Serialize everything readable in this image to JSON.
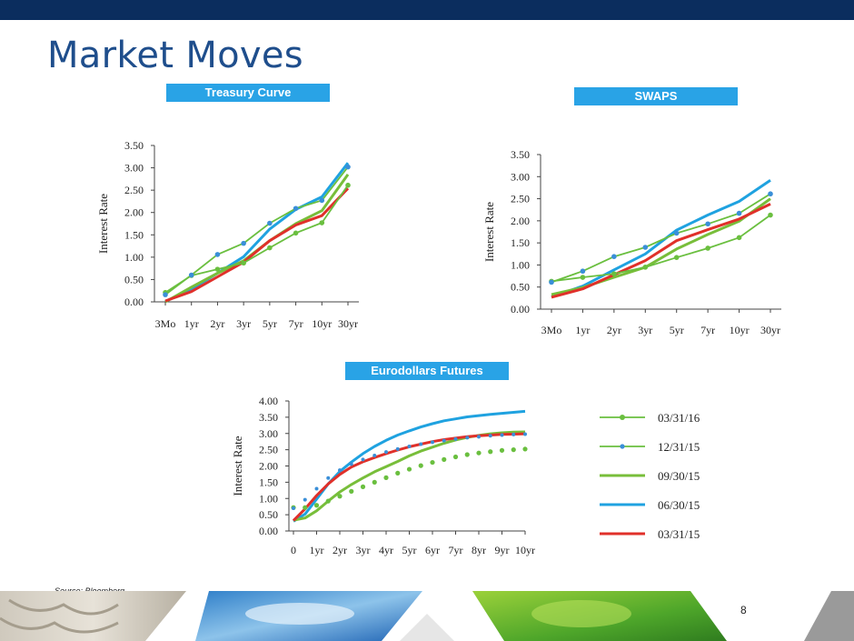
{
  "header": {
    "title": "Market Moves"
  },
  "labels": {
    "treasury": "Treasury Curve",
    "swaps": "SWAPS",
    "eurodollar": "Eurodollars Futures"
  },
  "footer": {
    "source": "Source: Bloomberg",
    "page": "8"
  },
  "legend": [
    {
      "name": "03/31/16",
      "color": "#6abf3f",
      "marker": "circle"
    },
    {
      "name": "12/31/15",
      "color": "#6abf3f",
      "marker": "blue-dot"
    },
    {
      "name": "09/30/15",
      "color": "#78be3a",
      "marker": "none"
    },
    {
      "name": "06/30/15",
      "color": "#1fa2e0",
      "marker": "none"
    },
    {
      "name": "03/31/15",
      "color": "#e0302a",
      "marker": "none"
    }
  ],
  "chart_data": [
    {
      "id": "treasury",
      "type": "line",
      "ylabel": "Interest Rate",
      "categories": [
        "3Mo",
        "1yr",
        "2yr",
        "3yr",
        "5yr",
        "7yr",
        "10yr",
        "30yr"
      ],
      "yticks": [
        "0.00",
        "0.50",
        "1.00",
        "1.50",
        "2.00",
        "2.50",
        "3.00",
        "3.50"
      ],
      "ylim": [
        0,
        3.5
      ],
      "series": [
        {
          "name": "03/31/16",
          "color": "#6abf3f",
          "marker": "green",
          "values": [
            0.21,
            0.59,
            0.73,
            0.87,
            1.21,
            1.54,
            1.77,
            2.61
          ]
        },
        {
          "name": "12/31/15",
          "color": "#6abf3f",
          "marker": "blue",
          "values": [
            0.16,
            0.6,
            1.06,
            1.31,
            1.76,
            2.09,
            2.27,
            3.02
          ]
        },
        {
          "name": "09/30/15",
          "color": "#78be3a",
          "marker": "none",
          "values": [
            0.0,
            0.33,
            0.64,
            0.92,
            1.37,
            1.75,
            2.04,
            2.85
          ]
        },
        {
          "name": "06/30/15",
          "color": "#1fa2e0",
          "marker": "none",
          "values": [
            0.01,
            0.28,
            0.64,
            1.01,
            1.63,
            2.07,
            2.35,
            3.11
          ]
        },
        {
          "name": "03/31/15",
          "color": "#e0302a",
          "marker": "none",
          "values": [
            0.02,
            0.23,
            0.56,
            0.89,
            1.37,
            1.72,
            1.93,
            2.54
          ]
        }
      ]
    },
    {
      "id": "swaps",
      "type": "line",
      "ylabel": "Interest Rate",
      "categories": [
        "3Mo",
        "1yr",
        "2yr",
        "3yr",
        "5yr",
        "7yr",
        "10yr",
        "30yr"
      ],
      "yticks": [
        "0.00",
        "0.50",
        "1.00",
        "1.50",
        "2.00",
        "2.50",
        "3.00",
        "3.50"
      ],
      "ylim": [
        0,
        3.5
      ],
      "series": [
        {
          "name": "03/31/16",
          "color": "#6abf3f",
          "marker": "green",
          "values": [
            0.63,
            0.72,
            0.8,
            0.95,
            1.17,
            1.38,
            1.62,
            2.13
          ]
        },
        {
          "name": "12/31/15",
          "color": "#6abf3f",
          "marker": "blue",
          "values": [
            0.61,
            0.86,
            1.19,
            1.4,
            1.72,
            1.93,
            2.17,
            2.61
          ]
        },
        {
          "name": "09/30/15",
          "color": "#78be3a",
          "marker": "none",
          "values": [
            0.33,
            0.49,
            0.72,
            0.95,
            1.36,
            1.69,
            1.99,
            2.5
          ]
        },
        {
          "name": "06/30/15",
          "color": "#1fa2e0",
          "marker": "none",
          "values": [
            0.28,
            0.52,
            0.89,
            1.25,
            1.79,
            2.13,
            2.44,
            2.92
          ]
        },
        {
          "name": "03/31/15",
          "color": "#e0302a",
          "marker": "none",
          "values": [
            0.27,
            0.46,
            0.78,
            1.1,
            1.55,
            1.8,
            2.04,
            2.38
          ]
        }
      ]
    },
    {
      "id": "eurodollar",
      "type": "line",
      "ylabel": "Interest Rate",
      "xticks": [
        "0",
        "1yr",
        "2yr",
        "3yr",
        "4yr",
        "5yr",
        "6yr",
        "7yr",
        "8yr",
        "9yr",
        "10yr"
      ],
      "yticks": [
        "0.00",
        "0.50",
        "1.00",
        "1.50",
        "2.00",
        "2.50",
        "3.00",
        "3.50",
        "4.00"
      ],
      "ylim": [
        0,
        4
      ],
      "xlim": [
        0,
        10
      ],
      "series": [
        {
          "name": "03/31/16",
          "color": "#6abf3f",
          "marker": "green",
          "x": [
            0,
            0.5,
            1,
            1.5,
            2,
            2.5,
            3,
            3.5,
            4,
            4.5,
            5,
            5.5,
            6,
            6.5,
            7,
            7.5,
            8,
            8.5,
            9,
            9.5,
            10
          ],
          "values": [
            0.72,
            0.72,
            0.79,
            0.92,
            1.07,
            1.22,
            1.36,
            1.5,
            1.64,
            1.78,
            1.9,
            2.01,
            2.11,
            2.2,
            2.28,
            2.35,
            2.4,
            2.44,
            2.48,
            2.5,
            2.52
          ]
        },
        {
          "name": "12/31/15",
          "color": "#6abf3f",
          "marker": "blue",
          "x": [
            0,
            0.5,
            1,
            1.5,
            2,
            2.5,
            3,
            3.5,
            4,
            4.5,
            5,
            5.5,
            6,
            6.5,
            7,
            7.5,
            8,
            8.5,
            9,
            9.5,
            10
          ],
          "values": [
            0.7,
            0.96,
            1.3,
            1.63,
            1.87,
            2.06,
            2.2,
            2.32,
            2.43,
            2.52,
            2.6,
            2.67,
            2.73,
            2.78,
            2.83,
            2.87,
            2.9,
            2.93,
            2.95,
            2.97,
            2.98
          ]
        },
        {
          "name": "09/30/15",
          "color": "#78be3a",
          "marker": "none",
          "x": [
            0,
            0.5,
            1,
            1.5,
            2,
            2.5,
            3,
            3.5,
            4,
            4.5,
            5,
            5.5,
            6,
            6.5,
            7,
            7.5,
            8,
            8.5,
            9,
            9.5,
            10
          ],
          "values": [
            0.33,
            0.4,
            0.62,
            0.92,
            1.2,
            1.43,
            1.63,
            1.82,
            1.98,
            2.14,
            2.31,
            2.46,
            2.58,
            2.7,
            2.8,
            2.88,
            2.94,
            2.99,
            3.02,
            3.04,
            3.05
          ]
        },
        {
          "name": "06/30/15",
          "color": "#1fa2e0",
          "marker": "none",
          "x": [
            0,
            0.5,
            1,
            1.5,
            2,
            2.5,
            3,
            3.5,
            4,
            4.5,
            5,
            5.5,
            6,
            6.5,
            7,
            7.5,
            8,
            8.5,
            9,
            9.5,
            10
          ],
          "values": [
            0.3,
            0.52,
            0.98,
            1.45,
            1.83,
            2.12,
            2.38,
            2.6,
            2.79,
            2.95,
            3.08,
            3.2,
            3.3,
            3.39,
            3.45,
            3.51,
            3.55,
            3.59,
            3.62,
            3.65,
            3.68
          ]
        },
        {
          "name": "03/31/15",
          "color": "#e0302a",
          "marker": "none",
          "x": [
            0,
            0.5,
            1,
            1.5,
            2,
            2.5,
            3,
            3.5,
            4,
            4.5,
            5,
            5.5,
            6,
            6.5,
            7,
            7.5,
            8,
            8.5,
            9,
            9.5,
            10
          ],
          "values": [
            0.32,
            0.68,
            1.09,
            1.45,
            1.74,
            1.97,
            2.13,
            2.26,
            2.38,
            2.49,
            2.59,
            2.67,
            2.75,
            2.81,
            2.86,
            2.9,
            2.93,
            2.95,
            2.97,
            2.98,
            2.99
          ]
        }
      ]
    }
  ]
}
